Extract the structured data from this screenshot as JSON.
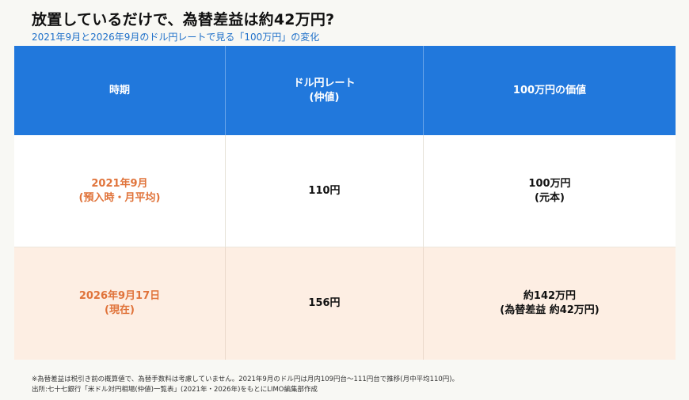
{
  "title": "放置しているだけで、為替差益は約42万円?",
  "subtitle": "2021年9月と2026年9月のドル円レートで見る「100万円」の変化",
  "table": {
    "headers": [
      {
        "line1": "時期",
        "line2": ""
      },
      {
        "line1": "ドル円レート",
        "line2": "(仲値)"
      },
      {
        "line1": "100万円の価値",
        "line2": ""
      }
    ],
    "rows": [
      {
        "period_line1": "2021年9月",
        "period_line2": "(預入時・月平均)",
        "rate": "110円",
        "value_line1": "100万円",
        "value_line2": "(元本)"
      },
      {
        "period_line1": "2026年9月17日",
        "period_line2": "(現在)",
        "rate": "156円",
        "value_line1": "約142万円",
        "value_line2": "(為替差益 約42万円)"
      }
    ]
  },
  "notes": {
    "line1": "※為替差益は税引き前の概算値で、為替手数料は考慮していません。2021年9月のドル円は月内109円台〜111円台で推移(月中平均110円)。",
    "line2": "出所:七十七銀行「米ドル対円相場(仲値)一覧表」(2021年・2026年)をもとにLIMO編集部作成"
  },
  "colors": {
    "header_bg": "#2178dc",
    "period_text": "#e0733a",
    "row2_bg": "#fdeee3",
    "subtitle": "#1d6fc9"
  }
}
